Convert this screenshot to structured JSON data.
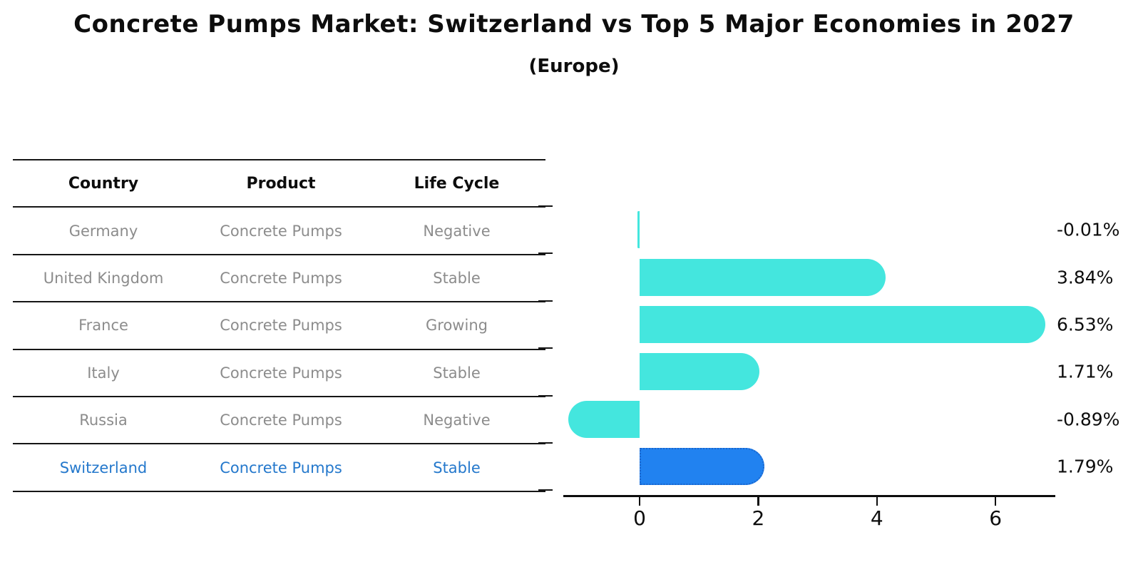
{
  "title": "Concrete Pumps Market: Switzerland vs Top 5 Major Economies in 2027",
  "subtitle": "(Europe)",
  "table": {
    "columns": [
      "Country",
      "Product",
      "Life Cycle"
    ],
    "rows": [
      {
        "country": "Germany",
        "product": "Concrete Pumps",
        "life_cycle": "Negative",
        "highlight": false
      },
      {
        "country": "United Kingdom",
        "product": "Concrete Pumps",
        "life_cycle": "Stable",
        "highlight": false
      },
      {
        "country": "France",
        "product": "Concrete Pumps",
        "life_cycle": "Growing",
        "highlight": false
      },
      {
        "country": "Italy",
        "product": "Concrete Pumps",
        "life_cycle": "Stable",
        "highlight": false
      },
      {
        "country": "Russia",
        "product": "Concrete Pumps",
        "life_cycle": "Negative",
        "highlight": false
      },
      {
        "country": "Switzerland",
        "product": "Concrete Pumps",
        "life_cycle": "Stable",
        "highlight": true
      }
    ]
  },
  "chart_data": {
    "type": "bar",
    "orientation": "horizontal",
    "title": "Concrete Pumps Market: Switzerland vs Top 5 Major Economies in 2027",
    "subtitle": "(Europe)",
    "categories": [
      "Germany",
      "United Kingdom",
      "France",
      "Italy",
      "Russia",
      "Switzerland"
    ],
    "values": [
      -0.01,
      3.84,
      6.53,
      1.71,
      -0.89,
      1.79
    ],
    "value_labels": [
      "-0.01%",
      "3.84%",
      "6.53%",
      "1.71%",
      "-0.89%",
      "1.79%"
    ],
    "xticks": [
      "0",
      "2",
      "4",
      "6"
    ],
    "xtick_values": [
      0,
      2,
      4,
      6
    ],
    "xlim": [
      -1.26,
      7.0
    ],
    "grid": false,
    "legend": false,
    "highlight_index": 5,
    "colors": {
      "bar": "#44E6DE",
      "highlight_bar": "#2182F0",
      "highlight_border": "#1B66CC",
      "highlight_text": "#2478CC",
      "table_text": "#8C8C8C",
      "axis": "#0d0d0d"
    }
  }
}
